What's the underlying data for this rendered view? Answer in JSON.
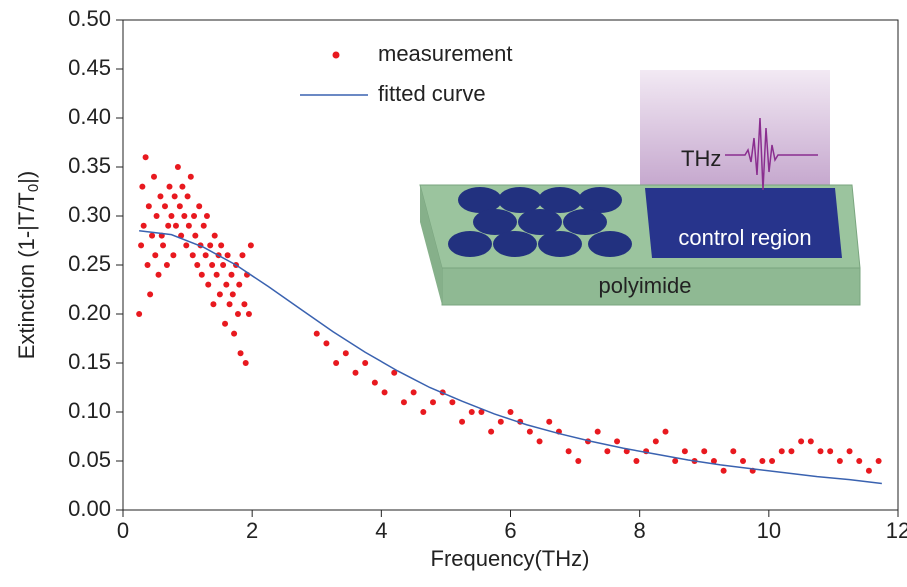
{
  "chart_data": {
    "type": "scatter",
    "xlabel": "Frequency(THz)",
    "ylabel": "Extinction (1-|T/T",
    "ylabel_sub": "0",
    "ylabel_end": "|)",
    "xlim": [
      0,
      12
    ],
    "ylim": [
      0,
      0.5
    ],
    "xticks": [
      0,
      2,
      4,
      6,
      8,
      10,
      12
    ],
    "yticks": [
      {
        "value": 0,
        "label": "0.00"
      },
      {
        "value": 0.05,
        "label": "0.05"
      },
      {
        "value": 0.1,
        "label": "0.10"
      },
      {
        "value": 0.15,
        "label": "0.15"
      },
      {
        "value": 0.2,
        "label": "0.20"
      },
      {
        "value": 0.25,
        "label": "0.25"
      },
      {
        "value": 0.3,
        "label": "0.30"
      },
      {
        "value": 0.35,
        "label": "0.35"
      },
      {
        "value": 0.4,
        "label": "0.40"
      },
      {
        "value": 0.45,
        "label": "0.45"
      },
      {
        "value": 0.5,
        "label": "0.50"
      }
    ],
    "annotations": [
      "THz",
      "control region",
      "polyimide"
    ],
    "series": [
      {
        "name": "measurement",
        "type": "scatter",
        "color": "#e8191f",
        "x": [
          0.25,
          0.28,
          0.3,
          0.32,
          0.35,
          0.38,
          0.4,
          0.42,
          0.45,
          0.48,
          0.5,
          0.52,
          0.55,
          0.58,
          0.6,
          0.62,
          0.65,
          0.68,
          0.7,
          0.72,
          0.75,
          0.78,
          0.8,
          0.82,
          0.85,
          0.88,
          0.9,
          0.92,
          0.95,
          0.98,
          1.0,
          1.02,
          1.05,
          1.08,
          1.1,
          1.12,
          1.15,
          1.18,
          1.2,
          1.22,
          1.25,
          1.28,
          1.3,
          1.32,
          1.35,
          1.38,
          1.4,
          1.42,
          1.45,
          1.48,
          1.5,
          1.52,
          1.55,
          1.58,
          1.6,
          1.62,
          1.65,
          1.68,
          1.7,
          1.72,
          1.75,
          1.78,
          1.8,
          1.82,
          1.85,
          1.88,
          1.9,
          1.92,
          1.95,
          1.98,
          3.0,
          3.15,
          3.3,
          3.45,
          3.6,
          3.75,
          3.9,
          4.05,
          4.2,
          4.35,
          4.5,
          4.65,
          4.8,
          4.95,
          5.1,
          5.25,
          5.4,
          5.55,
          5.7,
          5.85,
          6.0,
          6.15,
          6.3,
          6.45,
          6.6,
          6.75,
          6.9,
          7.05,
          7.2,
          7.35,
          7.5,
          7.65,
          7.8,
          7.95,
          8.1,
          8.25,
          8.4,
          8.55,
          8.7,
          8.85,
          9.0,
          9.15,
          9.3,
          9.45,
          9.6,
          9.75,
          9.9,
          10.05,
          10.2,
          10.35,
          10.5,
          10.65,
          10.8,
          10.95,
          11.1,
          11.25,
          11.4,
          11.55,
          11.7
        ],
        "values": [
          0.2,
          0.27,
          0.33,
          0.29,
          0.36,
          0.25,
          0.31,
          0.22,
          0.28,
          0.34,
          0.26,
          0.3,
          0.24,
          0.32,
          0.28,
          0.27,
          0.31,
          0.25,
          0.29,
          0.33,
          0.3,
          0.26,
          0.32,
          0.29,
          0.35,
          0.31,
          0.28,
          0.33,
          0.3,
          0.27,
          0.32,
          0.29,
          0.34,
          0.26,
          0.3,
          0.28,
          0.25,
          0.31,
          0.27,
          0.24,
          0.29,
          0.26,
          0.3,
          0.23,
          0.27,
          0.25,
          0.21,
          0.28,
          0.24,
          0.26,
          0.22,
          0.27,
          0.25,
          0.19,
          0.23,
          0.26,
          0.21,
          0.24,
          0.22,
          0.18,
          0.25,
          0.2,
          0.23,
          0.16,
          0.26,
          0.21,
          0.15,
          0.24,
          0.2,
          0.27,
          0.18,
          0.17,
          0.15,
          0.16,
          0.14,
          0.15,
          0.13,
          0.12,
          0.14,
          0.11,
          0.12,
          0.1,
          0.11,
          0.12,
          0.11,
          0.09,
          0.1,
          0.1,
          0.08,
          0.09,
          0.1,
          0.09,
          0.08,
          0.07,
          0.09,
          0.08,
          0.06,
          0.05,
          0.07,
          0.08,
          0.06,
          0.07,
          0.06,
          0.05,
          0.06,
          0.07,
          0.08,
          0.05,
          0.06,
          0.05,
          0.06,
          0.05,
          0.04,
          0.06,
          0.05,
          0.04,
          0.05,
          0.05,
          0.06,
          0.06,
          0.07,
          0.07,
          0.06,
          0.06,
          0.05,
          0.06,
          0.05,
          0.04,
          0.05
        ]
      },
      {
        "name": "fitted curve",
        "type": "line",
        "color": "#3a62b0",
        "x": [
          0.25,
          0.75,
          1.25,
          1.75,
          2.25,
          2.75,
          3.25,
          3.75,
          4.25,
          4.75,
          5.25,
          5.75,
          6.25,
          6.75,
          7.25,
          7.75,
          8.25,
          8.75,
          9.25,
          9.75,
          10.25,
          10.75,
          11.25,
          11.75
        ],
        "values": [
          0.285,
          0.281,
          0.268,
          0.25,
          0.228,
          0.205,
          0.182,
          0.161,
          0.142,
          0.125,
          0.111,
          0.098,
          0.087,
          0.078,
          0.07,
          0.063,
          0.057,
          0.051,
          0.046,
          0.042,
          0.038,
          0.034,
          0.031,
          0.027
        ]
      }
    ]
  }
}
